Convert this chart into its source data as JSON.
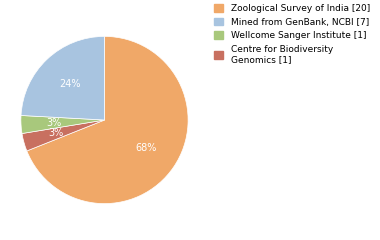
{
  "labels": [
    "Zoological Survey of India [20]",
    "Mined from GenBank, NCBI [7]",
    "Wellcome Sanger Institute [1]",
    "Centre for Biodiversity\nGenomics [1]"
  ],
  "values": [
    20,
    7,
    1,
    1
  ],
  "colors": [
    "#f0a868",
    "#a8c4e0",
    "#a8c87c",
    "#c87060"
  ],
  "pct_labels": [
    "68%",
    "24%",
    "3%",
    "3%"
  ],
  "startangle": 90,
  "background_color": "#ffffff"
}
